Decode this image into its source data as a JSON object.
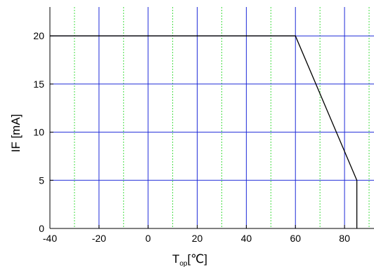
{
  "chart_data": {
    "type": "line",
    "xlabel": "T",
    "xlabel_subscript": "op",
    "xlabel_unit": "[℃]",
    "ylabel": "IF [mA]",
    "xlim": [
      -40,
      92
    ],
    "ylim": [
      0,
      23
    ],
    "x_ticks": [
      -40,
      -20,
      0,
      20,
      40,
      60,
      80
    ],
    "x_tick_labels": [
      "-40",
      "-20",
      "0",
      "20",
      "40",
      "60",
      "80"
    ],
    "y_ticks": [
      0,
      5,
      10,
      15,
      20
    ],
    "y_tick_labels": [
      "0",
      "5",
      "10",
      "15",
      "20"
    ],
    "x_minor_grid": [
      -30,
      -10,
      10,
      30,
      50,
      70,
      90
    ],
    "grid": true,
    "colors": {
      "major_grid": "#1f2bd8",
      "minor_grid": "#44dd44",
      "series": "#000000"
    },
    "series": [
      {
        "x": [
          -40,
          60,
          85,
          85
        ],
        "y": [
          20,
          20,
          5,
          0
        ]
      }
    ]
  }
}
